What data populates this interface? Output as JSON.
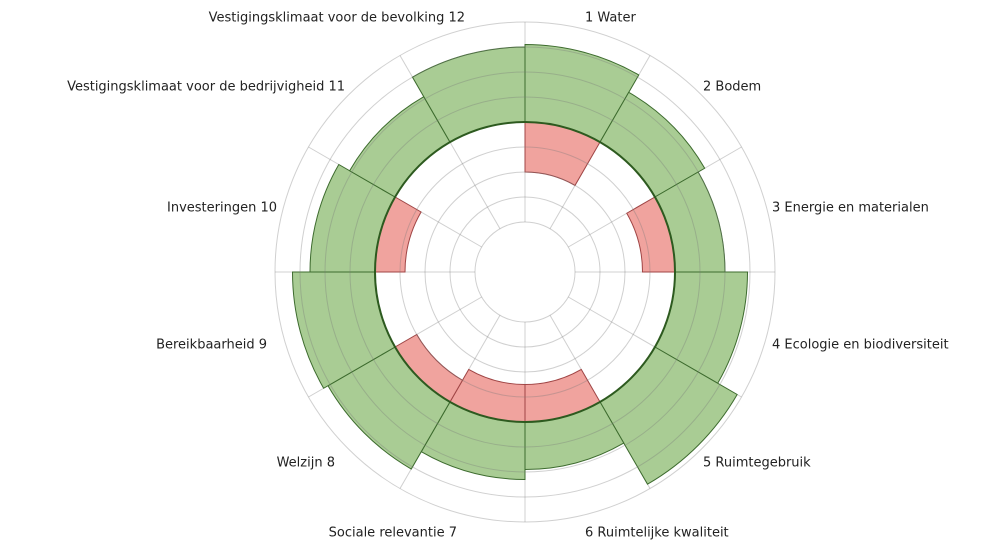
{
  "chart_data": {
    "type": "polar-bar",
    "categories": [
      "1 Water",
      "2 Bodem",
      "3 Energie en materialen",
      "4 Ecologie en biodiversiteit",
      "5 Ruimtegebruik",
      "6 Ruimtelijke kwaliteit",
      "Sociale relevantie 7",
      "Welzijn 8",
      "Bereikbaarheid 9",
      "Investeringen 10",
      "Vestigingsklimaat voor de bedrijvigheid 11",
      "Vestigingsklimaat voor de bevolking 12"
    ],
    "series": [
      {
        "color": "#a9cc94",
        "values": [
          3.1,
          2.3,
          2,
          2.9,
          3.8,
          1.9,
          2.3,
          3.1,
          3.3,
          2.6,
          2.1,
          3
        ]
      },
      {
        "color": "#f0a39e",
        "values": [
          -2,
          0,
          -1.3,
          0,
          0,
          -1.5,
          -1.5,
          -1,
          0,
          -1.2,
          0,
          0
        ]
      }
    ],
    "rlim": [
      -4,
      4
    ],
    "rticks": [
      -4,
      -3,
      -2,
      -1,
      0,
      1,
      2,
      3,
      4
    ],
    "grid": true
  }
}
